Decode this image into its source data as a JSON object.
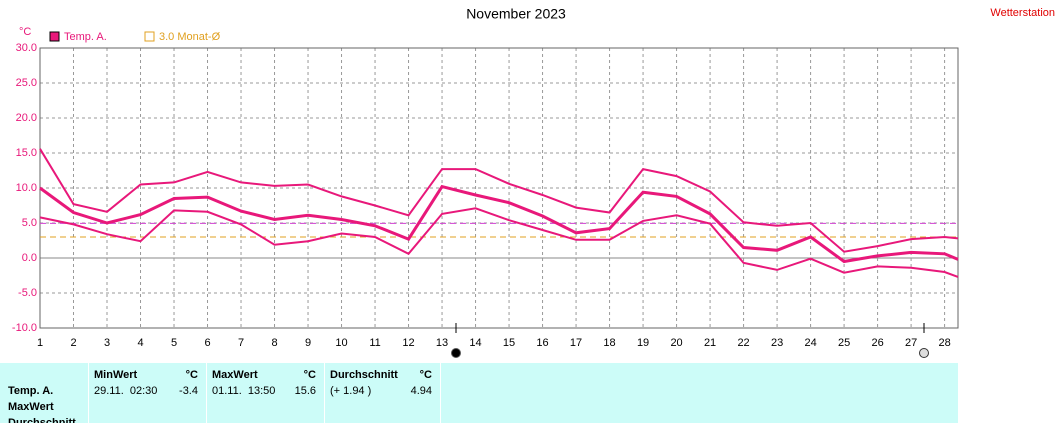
{
  "chart_data": {
    "type": "line",
    "title": "November 2023",
    "corner_label": "Wetterstation",
    "y_label": "°C",
    "x": [
      1,
      2,
      3,
      4,
      5,
      6,
      7,
      8,
      9,
      10,
      11,
      12,
      13,
      14,
      15,
      16,
      17,
      18,
      19,
      20,
      21,
      22,
      23,
      24,
      25,
      26,
      27,
      28,
      28.4
    ],
    "xlim": [
      1,
      28.4
    ],
    "xticks": [
      1,
      2,
      3,
      4,
      5,
      6,
      7,
      8,
      9,
      10,
      11,
      12,
      13,
      14,
      15,
      16,
      17,
      18,
      19,
      20,
      21,
      22,
      23,
      24,
      25,
      26,
      27,
      28
    ],
    "ylim": [
      -10,
      30
    ],
    "yticks": [
      {
        "value": -10,
        "label": "-10.0"
      },
      {
        "value": -5,
        "label": "-5.0"
      },
      {
        "value": 0,
        "label": "0.0"
      },
      {
        "value": 5,
        "label": "5.0"
      },
      {
        "value": 10,
        "label": "10.0"
      },
      {
        "value": 15,
        "label": "15.0"
      },
      {
        "value": 20,
        "label": "20.0"
      },
      {
        "value": 25,
        "label": "25.0"
      },
      {
        "value": 30,
        "label": "30.0"
      }
    ],
    "grid": true,
    "series": [
      {
        "name": "Temp. A.",
        "color": "#e8187a",
        "width": 3,
        "values": [
          10.0,
          6.5,
          5.0,
          6.2,
          8.5,
          8.7,
          6.7,
          5.5,
          6.1,
          5.5,
          4.6,
          2.7,
          10.2,
          9.0,
          7.9,
          6.0,
          3.6,
          4.2,
          9.4,
          8.8,
          6.3,
          1.5,
          1.1,
          3.0,
          -0.5,
          0.3,
          0.8,
          0.6,
          -0.2
        ]
      },
      {
        "color": "#e8187a",
        "width": 2,
        "values": [
          15.6,
          7.7,
          6.6,
          10.5,
          10.8,
          12.3,
          10.8,
          10.3,
          10.5,
          8.8,
          7.5,
          6.1,
          12.7,
          12.7,
          10.6,
          9.0,
          7.2,
          6.5,
          12.7,
          11.7,
          9.5,
          5.1,
          4.6,
          5.0,
          0.9,
          1.7,
          2.7,
          3.0,
          2.8
        ]
      },
      {
        "color": "#e8187a",
        "width": 2,
        "values": [
          5.8,
          4.8,
          3.4,
          2.4,
          6.8,
          6.6,
          4.8,
          1.9,
          2.4,
          3.5,
          3.0,
          0.6,
          6.3,
          7.1,
          5.4,
          4.0,
          2.6,
          2.6,
          5.3,
          6.1,
          4.9,
          -0.7,
          -1.7,
          -0.1,
          -2.1,
          -1.2,
          -1.4,
          -2.0,
          -2.7
        ]
      }
    ],
    "hlines": [
      {
        "name": "3.0 Monat-Ø",
        "value": 3.0,
        "color": "#e0a020"
      },
      {
        "value": 4.94,
        "color": "#d040d0"
      }
    ]
  },
  "table": {
    "row_labels": [
      "Temp. A.",
      "MaxWert",
      "Durchschnitt"
    ],
    "columns": [
      {
        "header": "MinWert",
        "unit": "°C",
        "when": "29.11.  02:30",
        "value": "-3.4"
      },
      {
        "header": "MaxWert",
        "unit": "°C",
        "when": "01.11.  13:50",
        "value": "15.6"
      },
      {
        "header": "Durchschnitt",
        "unit": "°C",
        "when": "(+ 1.94 )",
        "value": "4.94"
      }
    ]
  }
}
